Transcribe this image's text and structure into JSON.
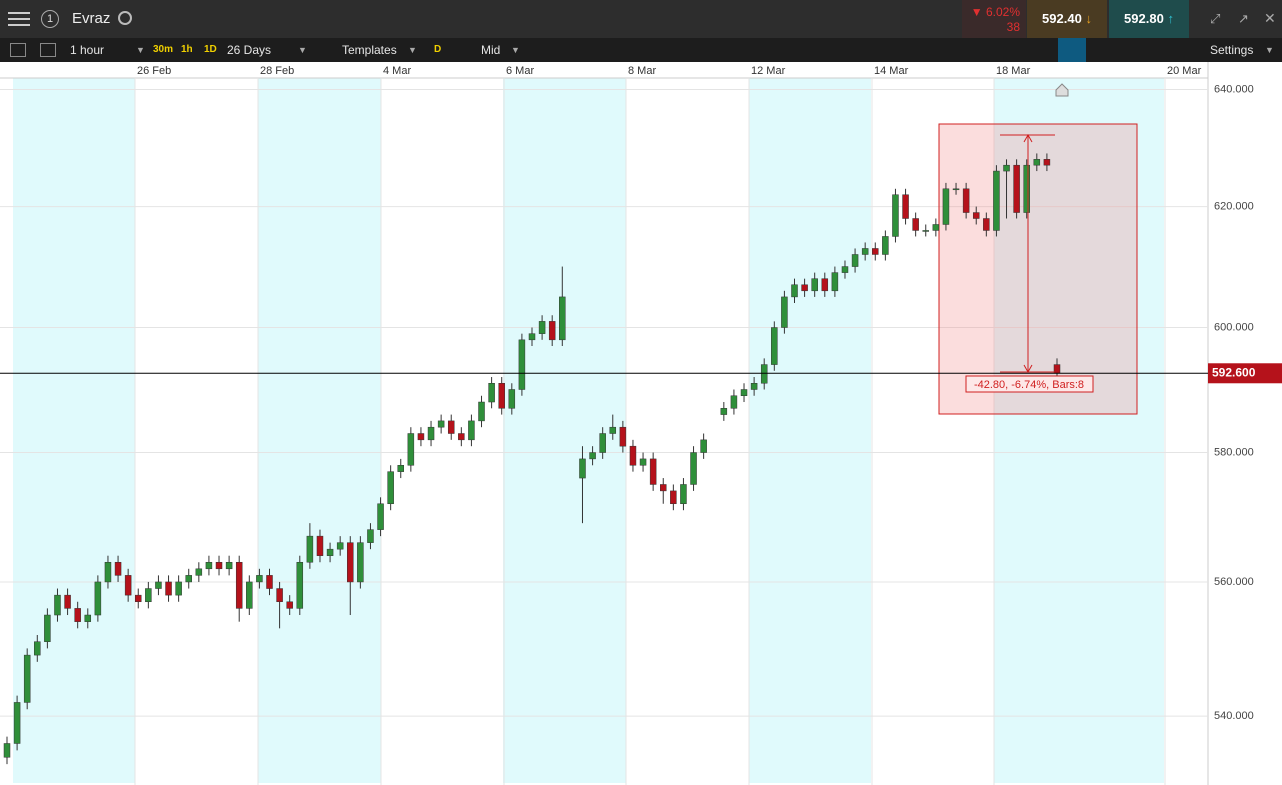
{
  "header": {
    "instrument": "Evraz",
    "change_pct": "▼ 6.02%",
    "change_pts": "38",
    "sell": "592.40",
    "buy": "592.80"
  },
  "toolbar": {
    "interval": "1 hour",
    "quick": [
      "30m",
      "1h",
      "1D"
    ],
    "range": "26 Days",
    "templates": "Templates",
    "d": "D",
    "price_type": "Mid",
    "settings": "Settings"
  },
  "chart_data": {
    "type": "candlestick",
    "log_scale": true,
    "x_labels": [
      "26 Feb",
      "28 Feb",
      "4 Mar",
      "6 Mar",
      "8 Mar",
      "12 Mar",
      "14 Mar",
      "18 Mar",
      "20 Mar"
    ],
    "ylim": [
      530,
      642
    ],
    "yticks": [
      {
        "value": 540,
        "label": "540.000"
      },
      {
        "value": 560,
        "label": "560.000"
      },
      {
        "value": 580,
        "label": "580.000"
      },
      {
        "value": 600,
        "label": "600.000"
      },
      {
        "value": 620,
        "label": "620.000"
      },
      {
        "value": 640,
        "label": "640.000"
      }
    ],
    "last_price": {
      "value": 592.6,
      "label": "592.600"
    },
    "measure_label": "-42.80, -6.74%, Bars:8",
    "up_color": "#2f8f3a",
    "down_color": "#b5121b",
    "candles": [
      [
        534,
        537,
        533,
        536
      ],
      [
        536,
        543,
        535,
        542
      ],
      [
        542,
        550,
        541,
        549
      ],
      [
        549,
        552,
        548,
        551
      ],
      [
        551,
        556,
        550,
        555
      ],
      [
        555,
        559,
        554,
        558
      ],
      [
        558,
        559,
        555,
        556
      ],
      [
        556,
        557,
        553,
        554
      ],
      [
        554,
        556,
        553,
        555
      ],
      [
        555,
        561,
        554,
        560
      ],
      [
        560,
        564,
        559,
        563
      ],
      [
        563,
        564,
        560,
        561
      ],
      [
        561,
        562,
        557,
        558
      ],
      [
        558,
        559,
        556,
        557
      ],
      [
        557,
        560,
        556,
        559
      ],
      [
        559,
        561,
        558,
        560
      ],
      [
        560,
        561,
        557,
        558
      ],
      [
        558,
        561,
        557,
        560
      ],
      [
        560,
        562,
        559,
        561
      ],
      [
        561,
        563,
        560,
        562
      ],
      [
        562,
        564,
        561,
        563
      ],
      [
        563,
        564,
        561,
        562
      ],
      [
        562,
        564,
        561,
        563
      ],
      [
        563,
        564,
        554,
        556
      ],
      [
        556,
        561,
        555,
        560
      ],
      [
        560,
        562,
        559,
        561
      ],
      [
        561,
        562,
        558,
        559
      ],
      [
        559,
        560,
        553,
        557
      ],
      [
        557,
        558,
        555,
        556
      ],
      [
        556,
        564,
        555,
        563
      ],
      [
        563,
        569,
        562,
        567
      ],
      [
        567,
        568,
        563,
        564
      ],
      [
        564,
        566,
        563,
        565
      ],
      [
        565,
        567,
        564,
        566
      ],
      [
        566,
        567,
        555,
        560
      ],
      [
        560,
        567,
        559,
        566
      ],
      [
        566,
        569,
        565,
        568
      ],
      [
        568,
        573,
        567,
        572
      ],
      [
        572,
        578,
        571,
        577
      ],
      [
        577,
        579,
        576,
        578
      ],
      [
        578,
        584,
        577,
        583
      ],
      [
        583,
        584,
        581,
        582
      ],
      [
        582,
        585,
        581,
        584
      ],
      [
        584,
        586,
        583,
        585
      ],
      [
        585,
        586,
        582,
        583
      ],
      [
        583,
        584,
        581,
        582
      ],
      [
        582,
        586,
        581,
        585
      ],
      [
        585,
        589,
        584,
        588
      ],
      [
        588,
        592,
        587,
        591
      ],
      [
        591,
        592,
        586,
        587
      ],
      [
        587,
        591,
        586,
        590
      ],
      [
        590,
        599,
        589,
        598
      ],
      [
        598,
        600,
        597,
        599
      ],
      [
        599,
        602,
        598,
        601
      ],
      [
        601,
        602,
        597,
        598
      ],
      [
        598,
        610,
        597,
        605
      ],
      null,
      [
        576,
        581,
        569,
        579
      ],
      [
        579,
        581,
        578,
        580
      ],
      [
        580,
        584,
        579,
        583
      ],
      [
        583,
        586,
        582,
        584
      ],
      [
        584,
        585,
        580,
        581
      ],
      [
        581,
        582,
        577,
        578
      ],
      [
        578,
        580,
        577,
        579
      ],
      [
        579,
        580,
        574,
        575
      ],
      [
        575,
        576,
        572,
        574
      ],
      [
        574,
        575,
        571,
        572
      ],
      [
        572,
        576,
        571,
        575
      ],
      [
        575,
        581,
        574,
        580
      ],
      [
        580,
        583,
        579,
        582
      ],
      null,
      [
        586,
        588,
        585,
        587
      ],
      [
        587,
        590,
        586,
        589
      ],
      [
        589,
        591,
        588,
        590
      ],
      [
        590,
        592,
        589,
        591
      ],
      [
        591,
        595,
        590,
        594
      ],
      [
        594,
        601,
        593,
        600
      ],
      [
        600,
        606,
        599,
        605
      ],
      [
        605,
        608,
        604,
        607
      ],
      [
        607,
        608,
        605,
        606
      ],
      [
        606,
        609,
        605,
        608
      ],
      [
        608,
        609,
        605,
        606
      ],
      [
        606,
        610,
        605,
        609
      ],
      [
        609,
        611,
        608,
        610
      ],
      [
        610,
        613,
        609,
        612
      ],
      [
        612,
        614,
        611,
        613
      ],
      [
        613,
        614,
        611,
        612
      ],
      [
        612,
        616,
        611,
        615
      ],
      [
        615,
        623,
        614,
        622
      ],
      [
        622,
        623,
        617,
        618
      ],
      [
        618,
        619,
        615,
        616
      ],
      [
        616,
        617,
        615,
        616
      ],
      [
        616,
        618,
        615,
        617
      ],
      [
        617,
        624,
        616,
        623
      ],
      [
        623,
        624,
        622,
        623
      ],
      [
        623,
        624,
        618,
        619
      ],
      [
        619,
        620,
        617,
        618
      ],
      [
        618,
        619,
        615,
        616
      ],
      [
        616,
        627,
        615,
        626
      ],
      [
        626,
        628,
        618,
        627
      ],
      [
        627,
        628,
        618,
        619
      ],
      [
        619,
        628,
        618,
        627
      ],
      [
        627,
        629,
        626,
        628
      ],
      [
        628,
        629,
        626,
        627
      ],
      [
        594,
        595,
        592,
        592.6
      ]
    ]
  }
}
